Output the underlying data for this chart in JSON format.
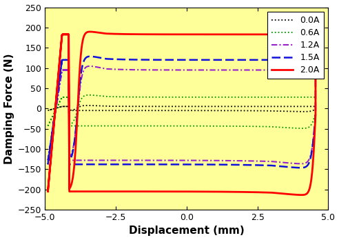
{
  "xlabel": "Displacement (mm)",
  "ylabel": "Damping Force (N)",
  "xlim": [
    -5.0,
    5.0
  ],
  "ylim": [
    -250,
    250
  ],
  "xticks": [
    -5.0,
    -2.5,
    0.0,
    2.5,
    5.0
  ],
  "yticks": [
    -250,
    -200,
    -150,
    -100,
    -50,
    0,
    50,
    100,
    150,
    200,
    250
  ],
  "background_color": "#ffff99",
  "legend_labels": [
    "0.0A",
    "0.6A",
    "1.2A",
    "1.5A",
    "2.0A"
  ]
}
